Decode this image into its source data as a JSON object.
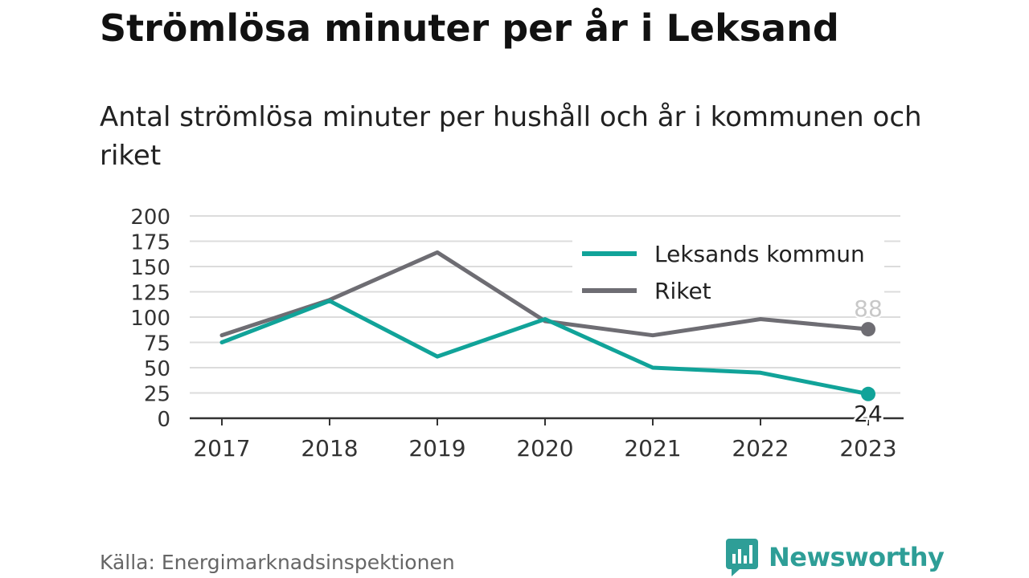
{
  "title": "Strömlösa minuter per år i Leksand",
  "subtitle": "Antal strömlösa minuter per hushåll och år i kommunen och riket",
  "source": "Källa: Energimarknadsinspektionen",
  "brand": "Newsworthy",
  "colors": {
    "leksand": "#11a399",
    "riket": "#6e6d73",
    "brand": "#2e9e97"
  },
  "chart_data": {
    "type": "line",
    "x": [
      "2017",
      "2018",
      "2019",
      "2020",
      "2021",
      "2022",
      "2023"
    ],
    "series": [
      {
        "name": "Leksands kommun",
        "values": [
          75,
          116,
          61,
          98,
          50,
          45,
          24
        ],
        "end_label": "24"
      },
      {
        "name": "Riket",
        "values": [
          82,
          117,
          164,
          96,
          82,
          98,
          88
        ],
        "end_label": "88"
      }
    ],
    "y_ticks": [
      0,
      25,
      50,
      75,
      100,
      125,
      150,
      175,
      200
    ],
    "ylim": [
      0,
      200
    ],
    "grid": true,
    "legend_position": "top-right"
  }
}
